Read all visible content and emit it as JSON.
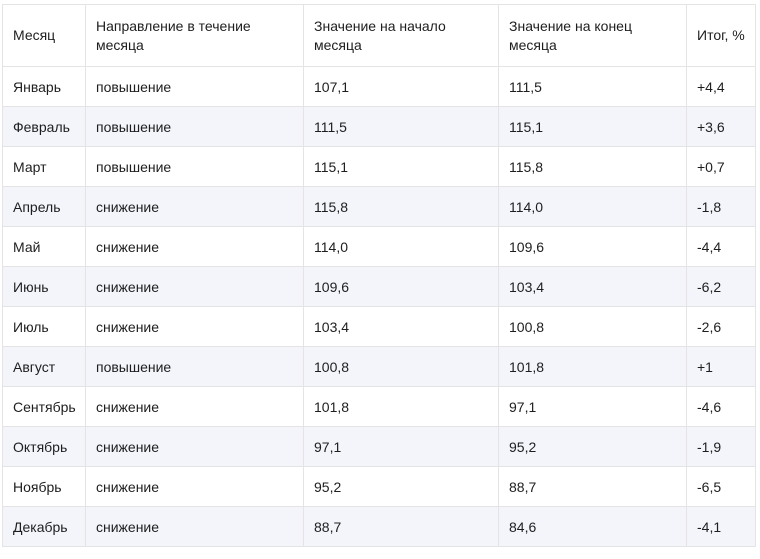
{
  "table": {
    "headers": [
      "Месяц",
      "Направление в течение месяца",
      "Значение на начало месяца",
      "Значение на конец месяца",
      "Итог, %"
    ],
    "rows": [
      [
        "Январь",
        "повышение",
        "107,1",
        "111,5",
        "+4,4"
      ],
      [
        "Февраль",
        "повышение",
        "111,5",
        "115,1",
        "+3,6"
      ],
      [
        "Март",
        "повышение",
        "115,1",
        "115,8",
        "+0,7"
      ],
      [
        "Апрель",
        "снижение",
        "115,8",
        "114,0",
        "-1,8"
      ],
      [
        "Май",
        "снижение",
        "114,0",
        "109,6",
        "-4,4"
      ],
      [
        "Июнь",
        "снижение",
        "109,6",
        "103,4",
        "-6,2"
      ],
      [
        "Июль",
        "снижение",
        "103,4",
        "100,8",
        "-2,6"
      ],
      [
        "Август",
        "повышение",
        "100,8",
        "101,8",
        "+1"
      ],
      [
        "Сентябрь",
        "снижение",
        "101,8",
        "97,1",
        "-4,6"
      ],
      [
        "Октябрь",
        "снижение",
        "97,1",
        "95,2",
        "-1,9"
      ],
      [
        "Ноябрь",
        "снижение",
        "95,2",
        "88,7",
        "-6,5"
      ],
      [
        "Декабрь",
        "снижение",
        "88,7",
        "84,6",
        "-4,1"
      ]
    ]
  }
}
